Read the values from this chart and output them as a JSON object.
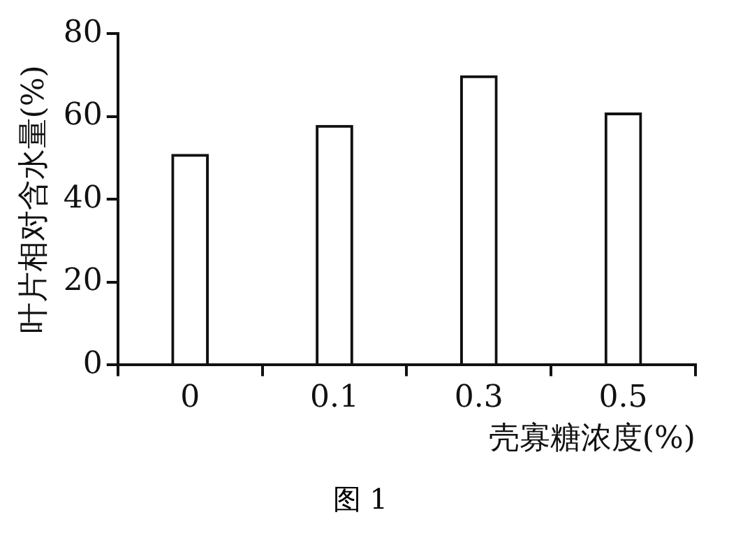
{
  "chart_data": {
    "type": "bar",
    "categories": [
      "0",
      "0.1",
      "0.3",
      "0.5"
    ],
    "values": [
      51,
      58,
      70,
      61
    ],
    "color": "#111111",
    "ylim": [
      0,
      80
    ],
    "yticks": [
      0,
      20,
      40,
      60,
      80
    ],
    "ylabel": "叶片相对含水量(%)",
    "xlabel": "壳寡糖浓度(%)",
    "annotations": [
      "图 1"
    ],
    "grid": false,
    "legend": false
  }
}
